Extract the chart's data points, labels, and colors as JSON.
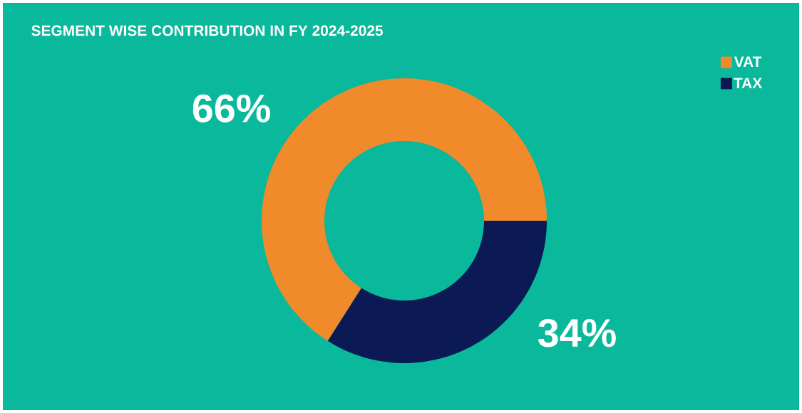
{
  "chart_data": {
    "type": "donut",
    "title": "SEGMENT WISE CONTRIBUTION IN FY 2024-2025",
    "categories": [
      "VAT",
      "TAX"
    ],
    "values": [
      66,
      34
    ],
    "value_labels": [
      "66%",
      "34%"
    ],
    "colors": [
      "#f08a2a",
      "#0b1a55"
    ],
    "legend": "top right"
  }
}
